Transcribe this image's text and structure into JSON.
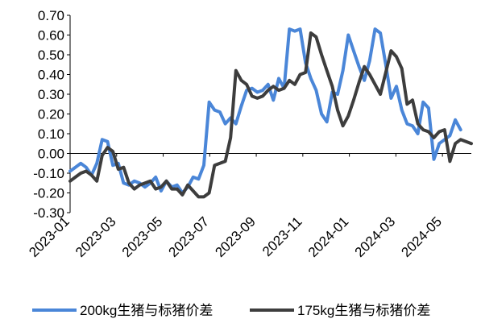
{
  "chart_data": {
    "type": "line",
    "title": "",
    "xlabel": "",
    "ylabel": "",
    "ylim": [
      -0.3,
      0.7
    ],
    "yticks": [
      "0.70",
      "0.60",
      "0.50",
      "0.40",
      "0.30",
      "0.20",
      "0.10",
      "0.00",
      "-0.10",
      "-0.20",
      "-0.30"
    ],
    "ytick_values": [
      0.7,
      0.6,
      0.5,
      0.4,
      0.3,
      0.2,
      0.1,
      0.0,
      -0.1,
      -0.2,
      -0.3
    ],
    "xticks": [
      "2023-01",
      "2023-03",
      "2023-05",
      "2023-07",
      "2023-09",
      "2023-11",
      "2024-01",
      "2024-03",
      "2024-05"
    ],
    "xtick_positions": [
      0,
      8.7,
      17.4,
      26.1,
      34.8,
      43.5,
      52.2,
      60.9,
      69.6
    ],
    "legend_position": "bottom",
    "grid": false,
    "series": [
      {
        "name": "200kg生猪与标猪价差",
        "color": "#4a86d8",
        "values": [
          -0.09,
          -0.07,
          -0.05,
          -0.07,
          -0.11,
          -0.05,
          0.07,
          0.06,
          -0.06,
          -0.05,
          -0.15,
          -0.16,
          -0.14,
          -0.15,
          -0.17,
          -0.15,
          -0.12,
          -0.19,
          -0.14,
          -0.17,
          -0.16,
          -0.2,
          -0.17,
          -0.12,
          -0.13,
          -0.06,
          0.26,
          0.22,
          0.21,
          0.15,
          0.18,
          0.15,
          0.24,
          0.32,
          0.33,
          0.31,
          0.32,
          0.35,
          0.27,
          0.38,
          0.33,
          0.63,
          0.62,
          0.63,
          0.46,
          0.38,
          0.32,
          0.2,
          0.16,
          0.31,
          0.3,
          0.42,
          0.6,
          0.52,
          0.44,
          0.37,
          0.47,
          0.63,
          0.61,
          0.45,
          0.28,
          0.34,
          0.22,
          0.15,
          0.14,
          0.1,
          0.26,
          0.23,
          -0.03,
          0.05,
          0.07,
          0.09,
          0.17,
          0.12
        ]
      },
      {
        "name": "175kg生猪与标猪价差",
        "color": "#3d3d3d",
        "values": [
          -0.14,
          -0.12,
          -0.1,
          -0.09,
          -0.11,
          -0.14,
          -0.01,
          0.03,
          0.01,
          -0.08,
          -0.07,
          -0.15,
          -0.18,
          -0.16,
          -0.15,
          -0.14,
          -0.18,
          -0.17,
          -0.14,
          -0.18,
          -0.18,
          -0.21,
          -0.16,
          -0.19,
          -0.22,
          -0.22,
          -0.2,
          -0.06,
          -0.05,
          -0.04,
          0.08,
          0.42,
          0.37,
          0.35,
          0.29,
          0.28,
          0.29,
          0.32,
          0.34,
          0.32,
          0.33,
          0.37,
          0.35,
          0.4,
          0.41,
          0.61,
          0.59,
          0.5,
          0.42,
          0.34,
          0.22,
          0.14,
          0.19,
          0.27,
          0.36,
          0.44,
          0.4,
          0.35,
          0.3,
          0.41,
          0.52,
          0.49,
          0.43,
          0.25,
          0.27,
          0.15,
          0.12,
          0.11,
          0.08,
          0.11,
          0.12,
          -0.04,
          0.05,
          0.07,
          0.06,
          0.05
        ]
      }
    ]
  }
}
